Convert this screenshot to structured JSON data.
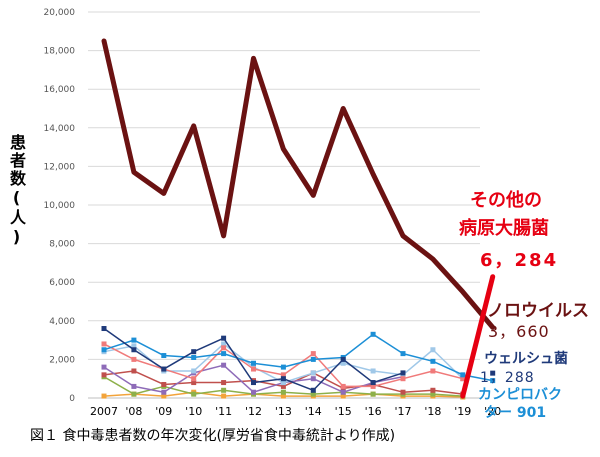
{
  "chart_data": {
    "type": "line",
    "ylabel": "患者数(人)",
    "caption": "図１ 食中毒患者数の年次変化(厚労省食中毒統計より作成)",
    "ylim": [
      0,
      20000
    ],
    "y_ticks": [
      "0",
      "2,000",
      "4,000",
      "6,000",
      "8,000",
      "10,000",
      "12,000",
      "14,000",
      "16,000",
      "18,000",
      "20,000"
    ],
    "categories": [
      "2007",
      "'08",
      "'09",
      "'10",
      "'11",
      "'12",
      "'13",
      "'14",
      "'15",
      "'16",
      "'17",
      "'18",
      "'19",
      "'20"
    ],
    "grid": "horizontal",
    "series": [
      {
        "key": "norovirus",
        "color": "#6b1212",
        "values": [
          18500,
          11700,
          10600,
          14100,
          8400,
          17600,
          12900,
          10500,
          15000,
          11600,
          8400,
          7200,
          5500,
          3660
        ]
      },
      {
        "key": "other_pathogens",
        "color": "#e60012",
        "values": [
          null,
          null,
          null,
          null,
          null,
          null,
          null,
          null,
          null,
          null,
          null,
          null,
          100,
          6284
        ]
      },
      {
        "key": "welsh",
        "color": "#1f3a7a",
        "values": [
          3600,
          2500,
          1500,
          2400,
          3100,
          800,
          1000,
          400,
          2000,
          800,
          1300,
          null,
          null,
          1288
        ]
      },
      {
        "key": "campylobacter",
        "color": "#1c8fd6",
        "values": [
          2500,
          3000,
          2200,
          2100,
          2300,
          1800,
          1600,
          2000,
          2100,
          3300,
          2300,
          1900,
          1200,
          901
        ]
      },
      {
        "key": "misc1",
        "color": "#f07a7a",
        "values": [
          2800,
          2000,
          1500,
          1000,
          2600,
          1500,
          1200,
          2300,
          600,
          600,
          1000,
          1400,
          1000,
          null
        ]
      },
      {
        "key": "misc2",
        "color": "#a0c8e8",
        "values": [
          2400,
          2700,
          1400,
          1400,
          2800,
          1600,
          800,
          1300,
          1800,
          1400,
          1200,
          2500,
          1000,
          null
        ]
      },
      {
        "key": "misc3",
        "color": "#8e6bb8",
        "values": [
          1600,
          600,
          300,
          1300,
          1700,
          300,
          800,
          1000,
          300,
          800,
          1100,
          null,
          null,
          null
        ]
      },
      {
        "key": "misc4",
        "color": "#c0504d",
        "values": [
          1200,
          1400,
          700,
          800,
          800,
          900,
          600,
          1300,
          500,
          700,
          300,
          400,
          200,
          null
        ]
      },
      {
        "key": "misc5",
        "color": "#8db04a",
        "values": [
          1100,
          200,
          600,
          200,
          400,
          200,
          300,
          200,
          300,
          200,
          200,
          200,
          100,
          null
        ]
      },
      {
        "key": "misc6",
        "color": "#f2a33a",
        "values": [
          100,
          200,
          100,
          300,
          100,
          200,
          100,
          100,
          100,
          200,
          100,
          100,
          50,
          null
        ]
      }
    ],
    "annotations": {
      "other_name_line1": "その他の",
      "other_name_line2": "病原大腸菌",
      "other_value": "6，284",
      "noro_name": "ノロウイルス",
      "noro_value": "3，660",
      "welsh_name": "ウェルシュ菌",
      "welsh_value": "1，288",
      "camp_name": "カンピロバク",
      "camp_value": "ター 901"
    }
  }
}
